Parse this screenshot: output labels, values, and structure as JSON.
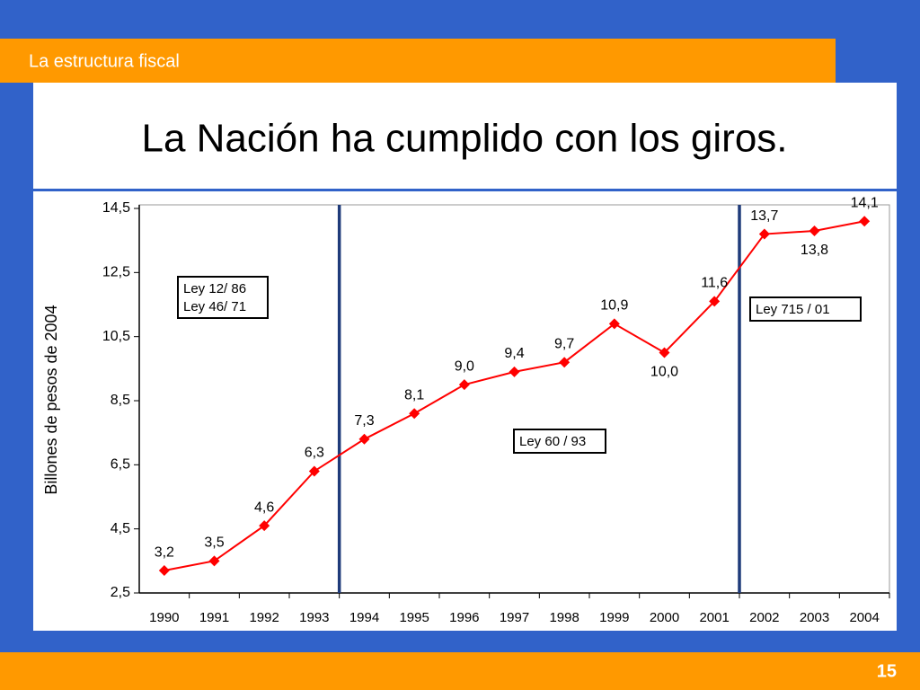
{
  "header": {
    "section": "La estructura fiscal",
    "title": "La Nación ha cumplido con los giros.",
    "page_number": "15"
  },
  "chart_data": {
    "type": "line",
    "y_label": "Billones de pesos de 2004",
    "categories": [
      "1990",
      "1991",
      "1992",
      "1993",
      "1994",
      "1995",
      "1996",
      "1997",
      "1998",
      "1999",
      "2000",
      "2001",
      "2002",
      "2003",
      "2004"
    ],
    "series": [
      {
        "name": "Billones de pesos de 2004",
        "color": "#ff0000",
        "values": [
          3.2,
          3.5,
          4.6,
          6.3,
          7.3,
          8.1,
          9.0,
          9.4,
          9.7,
          10.9,
          10.0,
          11.6,
          13.7,
          13.8,
          14.1
        ],
        "value_labels": [
          "3,2",
          "3,5",
          "4,6",
          "6,3",
          "7,3",
          "8,1",
          "9,0",
          "9,4",
          "9,7",
          "10,9",
          "10,0",
          "11,6",
          "13,7",
          "13,8",
          "14,1"
        ]
      }
    ],
    "ylim": [
      2.5,
      14.5
    ],
    "yticks": [
      {
        "value": 2.5,
        "label": "2,5"
      },
      {
        "value": 4.5,
        "label": "4,5"
      },
      {
        "value": 6.5,
        "label": "6,5"
      },
      {
        "value": 8.5,
        "label": "8,5"
      },
      {
        "value": 10.5,
        "label": "10,5"
      },
      {
        "value": 12.5,
        "label": "12,5"
      },
      {
        "value": 14.5,
        "label": "14,5"
      }
    ],
    "annotations": [
      "Ley 12/ 86",
      "Ley 46/ 71",
      "Ley 60 / 93",
      "Ley 715 / 01"
    ]
  }
}
